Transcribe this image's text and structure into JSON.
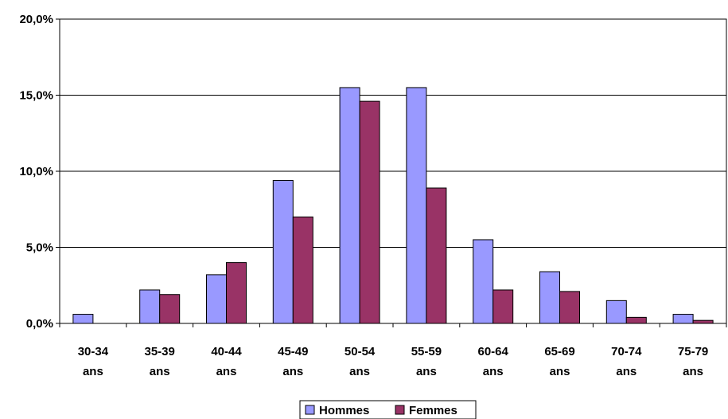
{
  "chart_data": {
    "type": "bar",
    "categories": [
      [
        "30-34",
        "ans"
      ],
      [
        "35-39",
        "ans"
      ],
      [
        "40-44",
        "ans"
      ],
      [
        "45-49",
        "ans"
      ],
      [
        "50-54",
        "ans"
      ],
      [
        "55-59",
        "ans"
      ],
      [
        "60-64",
        "ans"
      ],
      [
        "65-69",
        "ans"
      ],
      [
        "70-74",
        "ans"
      ],
      [
        "75-79",
        "ans"
      ]
    ],
    "series": [
      {
        "name": "Hommes",
        "color": "#9999ff",
        "values": [
          0.6,
          2.2,
          3.2,
          9.4,
          15.5,
          15.5,
          5.5,
          3.4,
          1.5,
          0.6
        ]
      },
      {
        "name": "Femmes",
        "color": "#993366",
        "values": [
          0.0,
          1.9,
          4.0,
          7.0,
          14.6,
          8.9,
          2.2,
          2.1,
          0.4,
          0.2
        ]
      }
    ],
    "y_ticks": [
      "0,0%",
      "5,0%",
      "10,0%",
      "15,0%",
      "20,0%"
    ],
    "y_tick_values": [
      0,
      5,
      10,
      15,
      20
    ],
    "ylim": [
      0,
      20
    ],
    "grid": true,
    "legend_position": "bottom"
  }
}
